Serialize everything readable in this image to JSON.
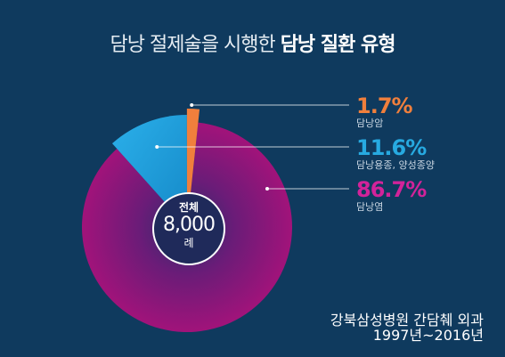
{
  "title": {
    "light": "담낭 절제술을 시행한",
    "bold": "담낭 질환 유형"
  },
  "chart_data": {
    "type": "pie",
    "center_label": "전체",
    "center_value": "8,000",
    "center_unit": "례",
    "slices": [
      {
        "label": "담낭암",
        "percent_label": "1.7%",
        "value": 1.7,
        "color": "#f07f3c"
      },
      {
        "label": "담낭용종, 양성종양",
        "percent_label": "11.6%",
        "value": 11.6,
        "color": "#27aae1"
      },
      {
        "label": "담낭염",
        "percent_label": "86.7%",
        "value": 86.7,
        "color": "#a1137a"
      }
    ]
  },
  "source": {
    "hospital": "강북삼성병원 간담췌 외과",
    "period": "1997년~2016년"
  }
}
